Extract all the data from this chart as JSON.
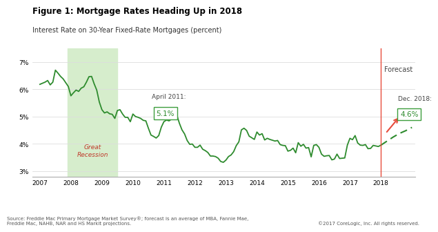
{
  "title": "Figure 1: Mortgage Rates Heading Up in 2018",
  "subtitle": "Interest Rate on 30-Year Fixed-Rate Mortgages (percent)",
  "source_text": "Source: Freddie Mac Primary Mortgage Market Survey®; forecast is an average of MBA, Fannie Mae,\nFreddie Mac, NAHB, NAR and HS Markit projections.",
  "copyright_text": "©2017 CoreLogic, Inc. All rights reserved.",
  "ylim": [
    2.8,
    7.5
  ],
  "xlim": [
    2006.75,
    2019.1
  ],
  "recession_start": 2007.9,
  "recession_end": 2009.5,
  "recession_label": "Great\nRecession",
  "recession_color": "#d6edcc",
  "recession_text_color": "#c0392b",
  "line_color": "#2e8b2e",
  "forecast_line_color": "#2e8b2e",
  "vline_x": 2018.0,
  "vline_color": "#e74c3c",
  "arrow_color": "#e74c3c",
  "april2011_label": "April 2011:",
  "april2011_value": "5.1%",
  "dec2018_label": "Dec. 2018:",
  "dec2018_value": "4.6%",
  "forecast_label": "Forecast",
  "box_color": "#ffffff",
  "box_edge_color": "#3d9e3d",
  "historical_x": [
    2007.0,
    2007.083,
    2007.167,
    2007.25,
    2007.333,
    2007.417,
    2007.5,
    2007.583,
    2007.667,
    2007.75,
    2007.833,
    2007.917,
    2008.0,
    2008.083,
    2008.167,
    2008.25,
    2008.333,
    2008.417,
    2008.5,
    2008.583,
    2008.667,
    2008.75,
    2008.833,
    2008.917,
    2009.0,
    2009.083,
    2009.167,
    2009.25,
    2009.333,
    2009.417,
    2009.5,
    2009.583,
    2009.667,
    2009.75,
    2009.833,
    2009.917,
    2010.0,
    2010.083,
    2010.167,
    2010.25,
    2010.333,
    2010.417,
    2010.5,
    2010.583,
    2010.667,
    2010.75,
    2010.833,
    2010.917,
    2011.0,
    2011.083,
    2011.167,
    2011.25,
    2011.333,
    2011.417,
    2011.5,
    2011.583,
    2011.667,
    2011.75,
    2011.833,
    2011.917,
    2012.0,
    2012.083,
    2012.167,
    2012.25,
    2012.333,
    2012.417,
    2012.5,
    2012.583,
    2012.667,
    2012.75,
    2012.833,
    2012.917,
    2013.0,
    2013.083,
    2013.167,
    2013.25,
    2013.333,
    2013.417,
    2013.5,
    2013.583,
    2013.667,
    2013.75,
    2013.833,
    2013.917,
    2014.0,
    2014.083,
    2014.167,
    2014.25,
    2014.333,
    2014.417,
    2014.5,
    2014.583,
    2014.667,
    2014.75,
    2014.833,
    2014.917,
    2015.0,
    2015.083,
    2015.167,
    2015.25,
    2015.333,
    2015.417,
    2015.5,
    2015.583,
    2015.667,
    2015.75,
    2015.833,
    2015.917,
    2016.0,
    2016.083,
    2016.167,
    2016.25,
    2016.333,
    2016.417,
    2016.5,
    2016.583,
    2016.667,
    2016.75,
    2016.833,
    2016.917,
    2017.0,
    2017.083,
    2017.167,
    2017.25,
    2017.333,
    2017.417,
    2017.5,
    2017.583,
    2017.667,
    2017.75,
    2017.833,
    2017.917,
    2018.0
  ],
  "historical_y": [
    6.18,
    6.22,
    6.26,
    6.32,
    6.16,
    6.26,
    6.7,
    6.59,
    6.47,
    6.38,
    6.24,
    6.1,
    5.76,
    5.87,
    5.97,
    5.92,
    6.04,
    6.09,
    6.26,
    6.46,
    6.47,
    6.2,
    5.97,
    5.53,
    5.25,
    5.13,
    5.17,
    5.1,
    5.08,
    4.93,
    5.22,
    5.25,
    5.09,
    4.97,
    4.97,
    4.81,
    5.09,
    5.0,
    4.97,
    4.93,
    4.86,
    4.84,
    4.57,
    4.32,
    4.27,
    4.21,
    4.3,
    4.61,
    4.81,
    4.87,
    4.84,
    4.91,
    5.05,
    5.05,
    4.75,
    4.51,
    4.36,
    4.12,
    3.98,
    3.99,
    3.87,
    3.87,
    3.95,
    3.8,
    3.75,
    3.68,
    3.55,
    3.55,
    3.53,
    3.47,
    3.35,
    3.32,
    3.4,
    3.53,
    3.59,
    3.71,
    3.93,
    4.07,
    4.51,
    4.57,
    4.49,
    4.28,
    4.22,
    4.16,
    4.43,
    4.32,
    4.37,
    4.14,
    4.2,
    4.16,
    4.13,
    4.1,
    4.12,
    3.97,
    3.94,
    3.93,
    3.73,
    3.76,
    3.84,
    3.67,
    4.04,
    3.91,
    3.98,
    3.84,
    3.86,
    3.52,
    3.94,
    3.97,
    3.87,
    3.62,
    3.54,
    3.56,
    3.57,
    3.41,
    3.44,
    3.62,
    3.46,
    3.47,
    3.48,
    3.95,
    4.2,
    4.15,
    4.3,
    4.03,
    3.95,
    3.94,
    3.97,
    3.82,
    3.83,
    3.94,
    3.92,
    3.9,
    3.95
  ],
  "forecast_x": [
    2018.0,
    2018.2,
    2018.4,
    2018.6,
    2018.8,
    2019.0
  ],
  "forecast_y": [
    3.95,
    4.1,
    4.25,
    4.38,
    4.48,
    4.6
  ],
  "xtick_positions": [
    2007,
    2008,
    2009,
    2010,
    2011,
    2012,
    2013,
    2014,
    2015,
    2016,
    2017,
    2018
  ],
  "xtick_labels": [
    "2007",
    "2008",
    "2009",
    "2010",
    "2011",
    "2012",
    "2013",
    "2014",
    "2015",
    "2016",
    "2017",
    "2018"
  ],
  "ytick_positions": [
    3,
    4,
    5,
    6,
    7
  ],
  "ytick_labels": [
    "3%",
    "4%",
    "5%",
    "6%",
    "7%"
  ]
}
